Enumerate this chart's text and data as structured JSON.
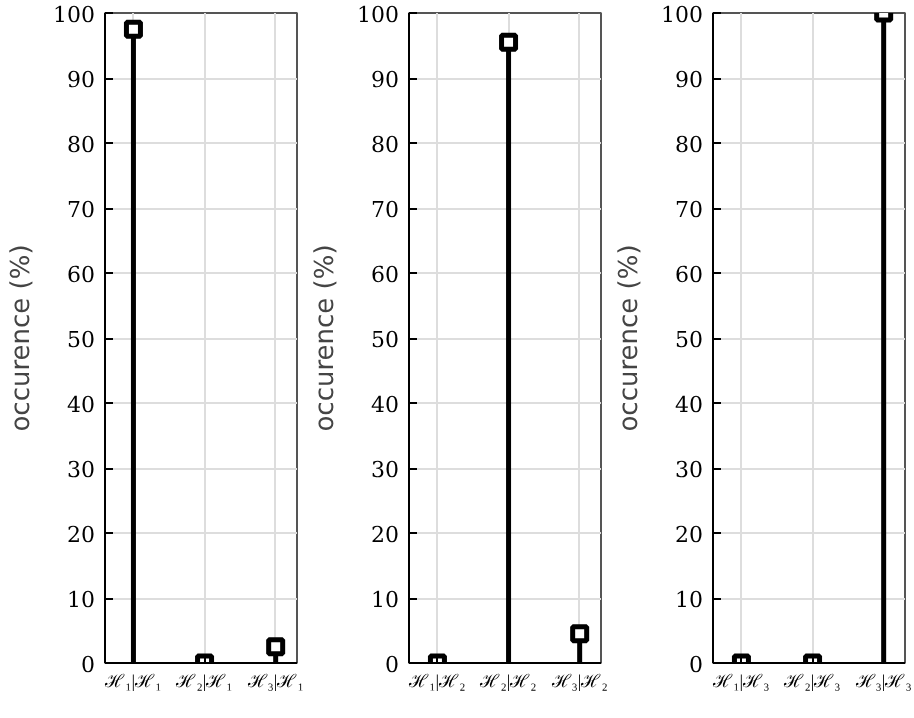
{
  "chart_data": [
    {
      "type": "lollipop",
      "categories": [
        "ℋ₁|ℋ₁",
        "ℋ₂|ℋ₁",
        "ℋ₃|ℋ₁"
      ],
      "values": [
        97.5,
        0,
        2.5
      ],
      "color": "#000000",
      "ylabel": "occurence (%)",
      "ylim": [
        0,
        100
      ],
      "yticks": [
        0,
        10,
        20,
        30,
        40,
        50,
        60,
        70,
        80,
        90,
        100
      ],
      "grid": true,
      "marker": "square"
    },
    {
      "type": "lollipop",
      "categories": [
        "ℋ₁|ℋ₂",
        "ℋ₂|ℋ₂",
        "ℋ₃|ℋ₂"
      ],
      "values": [
        0,
        95.5,
        4.5
      ],
      "color": "#000000",
      "ylabel": "occurence (%)",
      "ylim": [
        0,
        100
      ],
      "yticks": [
        0,
        10,
        20,
        30,
        40,
        50,
        60,
        70,
        80,
        90,
        100
      ],
      "grid": true,
      "marker": "square"
    },
    {
      "type": "lollipop",
      "categories": [
        "ℋ₁|ℋ₃",
        "ℋ₂|ℋ₃",
        "ℋ₃|ℋ₃"
      ],
      "values": [
        0,
        0,
        100
      ],
      "color": "#000000",
      "ylabel": "occurence (%)",
      "ylim": [
        0,
        100
      ],
      "yticks": [
        0,
        10,
        20,
        30,
        40,
        50,
        60,
        70,
        80,
        90,
        100
      ],
      "grid": true,
      "marker": "square"
    }
  ]
}
